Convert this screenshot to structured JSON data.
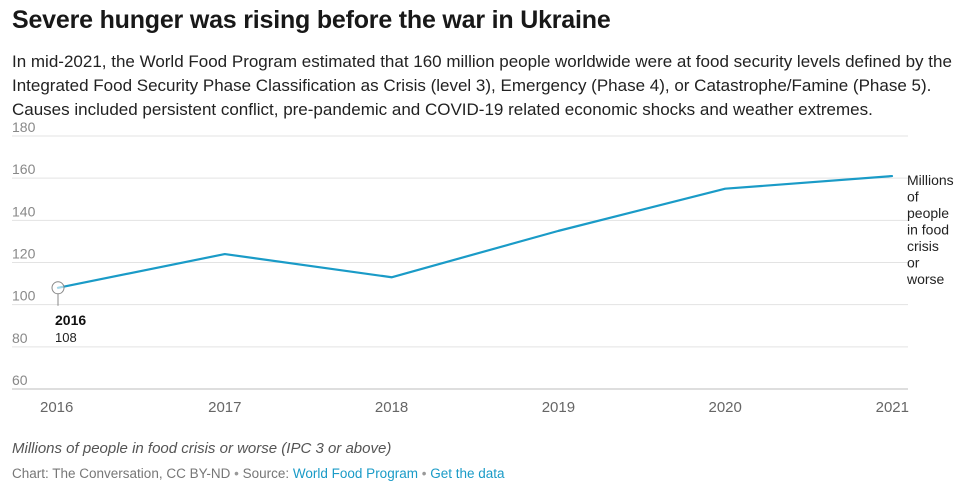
{
  "title": "Severe hunger was rising before the war in Ukraine",
  "subtitle": "In mid-2021, the World Food Program estimated that 160 million people worldwide were at food security levels defined by the Integrated Food Security Phase Classification as Crisis (level 3), Emergency (Phase 4), or Catastrophe/Famine (Phase 5). Causes included persistent conflict, pre-pandemic and COVID-19 related economic shocks and weather extremes.",
  "footnote": "Millions of people in food crisis or worse (IPC 3 or above)",
  "source": {
    "prefix": "Chart: The Conversation, CC BY-ND",
    "separator1": "•",
    "source_label": "Source:",
    "source_link": "World Food Program",
    "separator2": "•",
    "data_link": "Get the data"
  },
  "colors": {
    "line": "#1a9bc7",
    "grid": "#e3e3e3",
    "axis_text": "#888888"
  },
  "chart_data": {
    "type": "line",
    "title": "Severe hunger was rising before the war in Ukraine",
    "xlabel": "",
    "ylabel": "",
    "x": [
      "2016",
      "2017",
      "2018",
      "2019",
      "2020",
      "2021"
    ],
    "series": [
      {
        "name": "Millions of people in food crisis or worse",
        "values": [
          108,
          124,
          113,
          135,
          155,
          161
        ]
      }
    ],
    "ylim": [
      60,
      180
    ],
    "yticks": [
      "60",
      "80",
      "100",
      "120",
      "140",
      "160",
      "180"
    ],
    "grid": true,
    "series_label_lines": [
      "Millions",
      "of",
      "people",
      "in food",
      "crisis",
      "or",
      "worse"
    ],
    "annotation": {
      "x": "2016",
      "label": "2016",
      "value": "108"
    }
  }
}
